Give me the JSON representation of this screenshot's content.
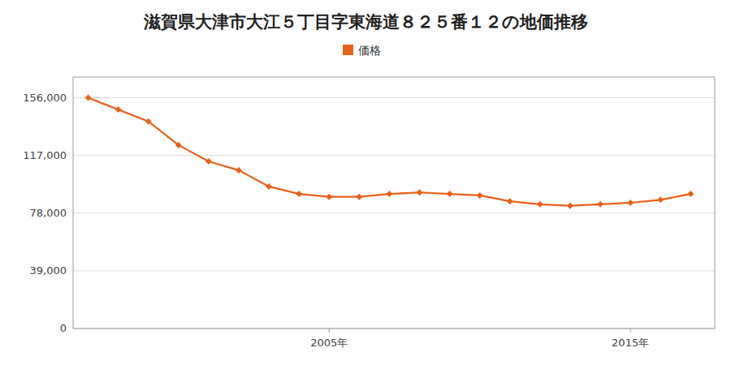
{
  "chart_data": {
    "type": "line",
    "title": "滋賀県大津市大江５丁目字東海道８２５番１２の地価推移",
    "x": [
      1997,
      1998,
      1999,
      2000,
      2001,
      2002,
      2003,
      2004,
      2005,
      2006,
      2007,
      2008,
      2009,
      2010,
      2011,
      2012,
      2013,
      2014,
      2015,
      2016,
      2017
    ],
    "series": [
      {
        "name": "価格",
        "color": "#E8621A",
        "marker": "diamond",
        "values": [
          156000,
          148000,
          140000,
          124000,
          113000,
          107000,
          96000,
          91000,
          89000,
          89000,
          91000,
          92000,
          91000,
          90000,
          86000,
          84000,
          83000,
          84000,
          85000,
          87000,
          91000
        ]
      }
    ],
    "xlim": [
      1996.5,
      2017.8
    ],
    "xticks": [
      {
        "value": 2005,
        "label": "2005年"
      },
      {
        "value": 2015,
        "label": "2015年"
      }
    ],
    "ylim": [
      0,
      170000
    ],
    "yticks": [
      0,
      {
        "value": 39000,
        "label": "39,000"
      },
      {
        "value": 78000,
        "label": "78,000"
      },
      {
        "value": 117000,
        "label": "117,000"
      },
      {
        "value": 156000,
        "label": "156,000"
      }
    ],
    "grid": true,
    "legend": "top"
  }
}
